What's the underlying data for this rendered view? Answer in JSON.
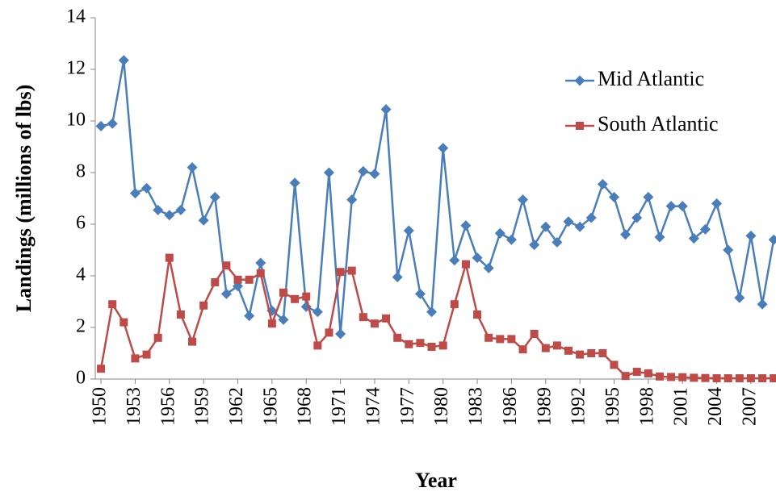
{
  "chart_data": {
    "type": "line",
    "x_label": "Year",
    "y_label": "Landings (millions  of lbs)",
    "x": [
      1950,
      1951,
      1952,
      1953,
      1954,
      1955,
      1956,
      1957,
      1958,
      1959,
      1960,
      1961,
      1962,
      1963,
      1964,
      1965,
      1966,
      1967,
      1968,
      1969,
      1970,
      1971,
      1972,
      1973,
      1974,
      1975,
      1976,
      1977,
      1978,
      1979,
      1980,
      1981,
      1982,
      1983,
      1984,
      1985,
      1986,
      1987,
      1988,
      1989,
      1990,
      1991,
      1992,
      1993,
      1994,
      1995,
      1996,
      1997,
      1998,
      1999,
      2000,
      2001,
      2002,
      2003,
      2004,
      2005,
      2006,
      2007,
      2008,
      2009
    ],
    "series": [
      {
        "name": "Mid Atlantic",
        "color": "#4a7ebb",
        "marker": "diamond",
        "values": [
          9.8,
          9.9,
          12.35,
          7.2,
          7.4,
          6.55,
          6.35,
          6.55,
          8.2,
          6.15,
          7.05,
          3.3,
          3.6,
          2.45,
          4.5,
          2.65,
          2.3,
          7.6,
          2.8,
          2.6,
          8.0,
          1.75,
          6.95,
          8.05,
          7.95,
          10.45,
          3.95,
          5.75,
          3.3,
          2.6,
          8.95,
          4.6,
          5.95,
          4.7,
          4.3,
          5.65,
          5.4,
          6.95,
          5.2,
          5.9,
          5.3,
          6.1,
          5.9,
          6.25,
          7.55,
          7.05,
          5.6,
          6.25,
          7.05,
          5.5,
          6.7,
          6.7,
          5.45,
          5.8,
          6.8,
          5.0,
          3.15,
          5.55,
          2.9,
          5.4
        ]
      },
      {
        "name": "South Atlantic",
        "color": "#be4b48",
        "marker": "square",
        "values": [
          0.4,
          2.9,
          2.2,
          0.8,
          0.95,
          1.6,
          4.7,
          2.5,
          1.45,
          2.85,
          3.75,
          4.4,
          3.85,
          3.85,
          4.1,
          2.15,
          3.35,
          3.1,
          3.2,
          1.3,
          1.8,
          4.15,
          4.2,
          2.4,
          2.15,
          2.35,
          1.6,
          1.35,
          1.4,
          1.25,
          1.3,
          2.9,
          4.45,
          2.5,
          1.6,
          1.55,
          1.55,
          1.15,
          1.75,
          1.2,
          1.3,
          1.1,
          0.95,
          1.0,
          1.0,
          0.55,
          0.12,
          0.28,
          0.22,
          0.1,
          0.08,
          0.07,
          0.05,
          0.04,
          0.03,
          0.03,
          0.03,
          0.03,
          0.03,
          0.03
        ]
      }
    ],
    "xlim": [
      1949.5,
      2009.2
    ],
    "xticks": [
      1950,
      1953,
      1956,
      1959,
      1962,
      1965,
      1968,
      1971,
      1974,
      1977,
      1980,
      1983,
      1986,
      1989,
      1992,
      1995,
      1998,
      2001,
      2004,
      2007
    ],
    "ylim": [
      0,
      14
    ],
    "yticks": [
      0,
      2,
      4,
      6,
      8,
      10,
      12,
      14
    ],
    "grid": false,
    "legend": "upper right"
  }
}
